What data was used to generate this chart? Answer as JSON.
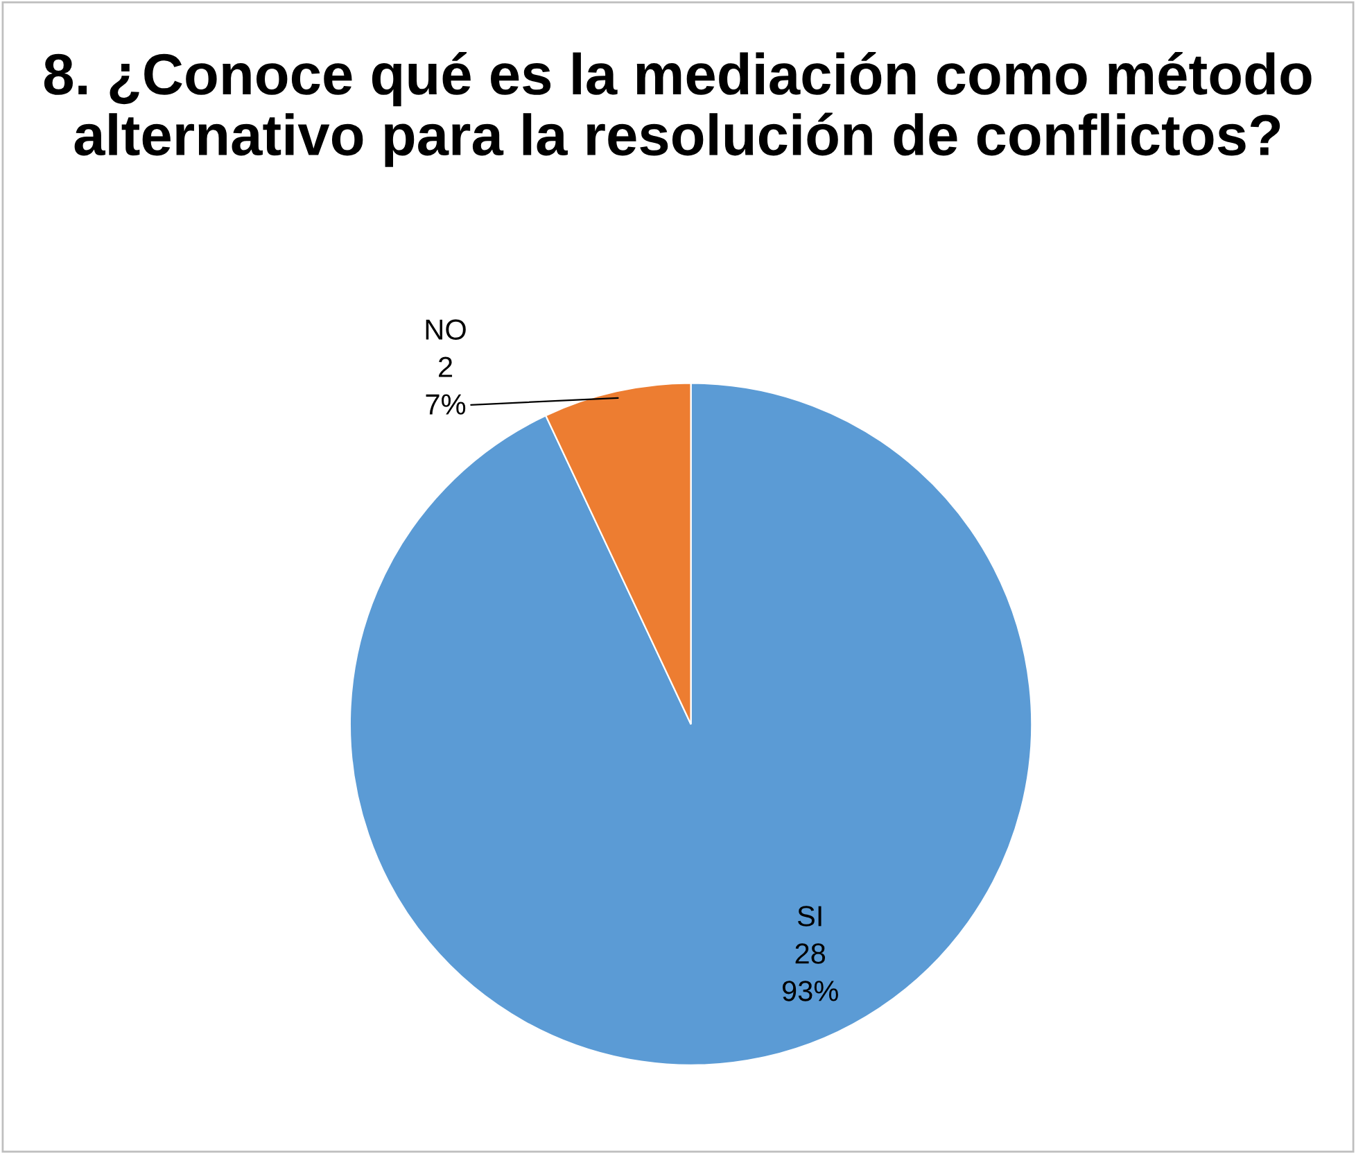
{
  "chart_data": {
    "type": "pie",
    "title": "8. ¿Conoce qué es la mediación como método alternativo para la resolución de conflictos?",
    "categories": [
      "SI",
      "NO"
    ],
    "values": [
      93,
      7
    ],
    "value_labels": [
      "28\n93%",
      "2\n7%"
    ],
    "colors": [
      "#5b9bd5",
      "#ed7d31"
    ],
    "data_labels": true,
    "legend": false
  }
}
